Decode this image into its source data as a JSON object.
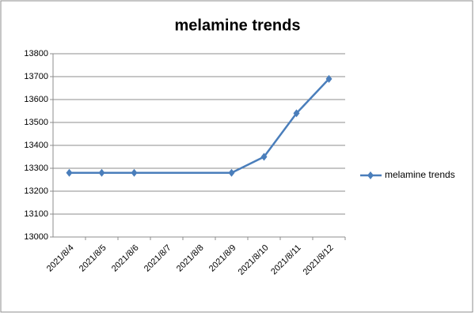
{
  "chart_data": {
    "type": "line",
    "title": "melamine trends",
    "x": [
      "2021/8/4",
      "2021/8/5",
      "2021/8/6",
      "2021/8/9",
      "2021/8/10",
      "2021/8/11",
      "2021/8/12"
    ],
    "xticks": [
      "2021/8/4",
      "2021/8/5",
      "2021/8/6",
      "2021/8/7",
      "2021/8/8",
      "2021/8/9",
      "2021/8/10",
      "2021/8/11",
      "2021/8/12"
    ],
    "series": [
      {
        "name": "melamine trends",
        "color": "#4a7ebb",
        "values": [
          13280,
          13280,
          13280,
          13280,
          13350,
          13540,
          13690
        ]
      }
    ],
    "ylim": [
      13000,
      13800
    ],
    "yticks": [
      13000,
      13100,
      13200,
      13300,
      13400,
      13500,
      13600,
      13700,
      13800
    ],
    "grid": true,
    "legend": "right"
  }
}
